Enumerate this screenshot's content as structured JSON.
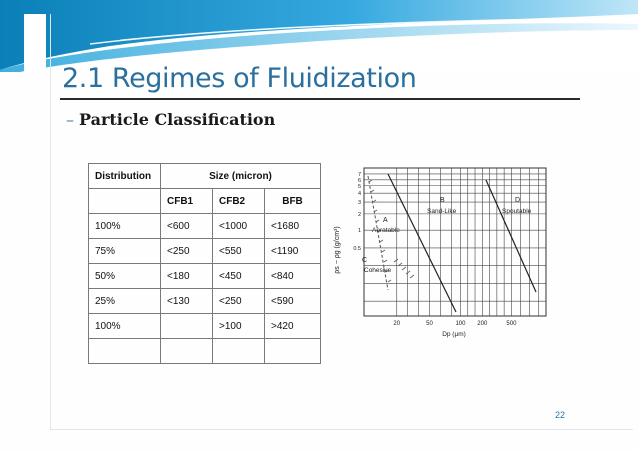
{
  "slide": {
    "title": "2.1 Regimes of Fluidization",
    "subtitle_dash": "–",
    "subtitle": "Particle Classification",
    "page_number": "22"
  },
  "table": {
    "header_distribution": "Distribution",
    "header_size": "Size (micron)",
    "columns": [
      "CFB1",
      "CFB2",
      "BFB"
    ],
    "rows": [
      [
        "100%",
        "<600",
        "<1000",
        "<1680"
      ],
      [
        "75%",
        "<250",
        "<550",
        "<1190"
      ],
      [
        "50%",
        "<180",
        "<450",
        "<840"
      ],
      [
        "25%",
        "<130",
        "<250",
        "<590"
      ],
      [
        "100%",
        "",
        ">100",
        ">420"
      ],
      [
        "",
        "",
        "",
        ""
      ]
    ]
  },
  "geldart_chart": {
    "ylabel": "ρs − ρg (g/cm³)",
    "xlabel": "Dp (μm)",
    "y_tick_labels": [
      "7",
      "6",
      "5",
      "4",
      "3",
      "2",
      "1",
      "0.5"
    ],
    "x_tick_labels": [
      "20",
      "50",
      "100",
      "200",
      "500"
    ],
    "group_letters": [
      "A",
      "B",
      "C",
      "D"
    ],
    "region_labels": [
      "Aeratable",
      "Sand-Like",
      "Spoutable",
      "Cohesive"
    ]
  }
}
